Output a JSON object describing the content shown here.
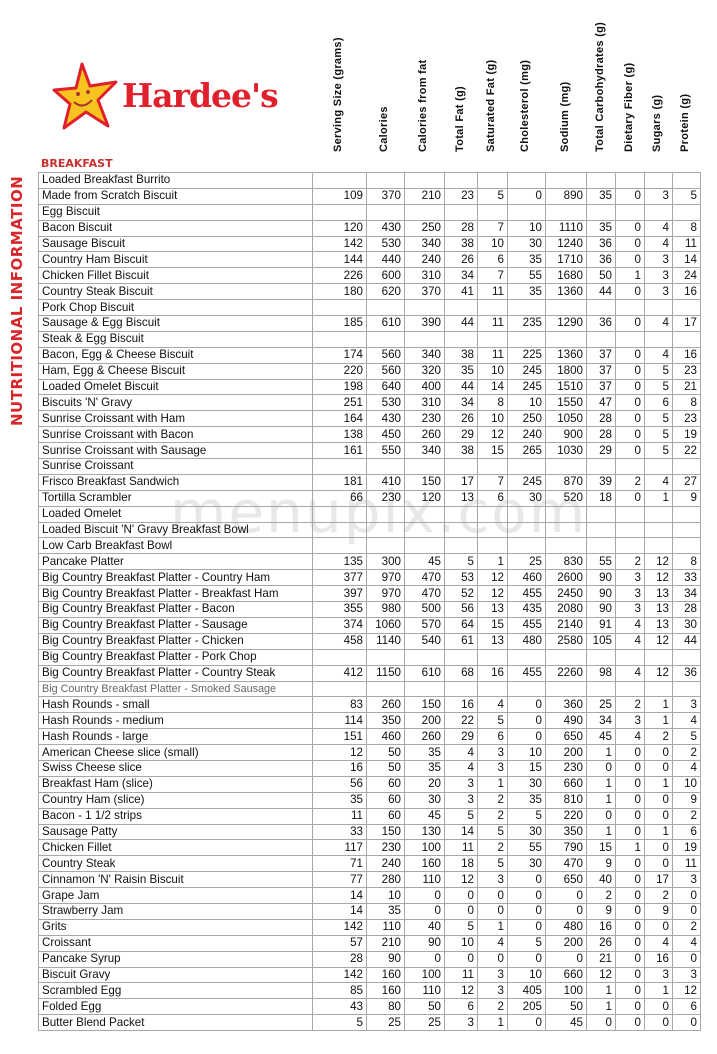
{
  "brand": {
    "name": "Hardee's",
    "logo_icon": "star-mascot-icon",
    "color": "#e0202c"
  },
  "side_title": "NUTRITIONAL INFORMATION",
  "section": "BREAKFAST",
  "watermark": "menupix.com",
  "columns": [
    "Serving Size (grams)",
    "Calories",
    "Calories from fat",
    "Total Fat (g)",
    "Saturated Fat (g)",
    "Cholesterol (mg)",
    "Sodium (mg)",
    "Total Carbohydrates (g)",
    "Dietary Fiber (g)",
    "Sugars (g)",
    "Protein (g)"
  ],
  "rows": [
    {
      "name": "Loaded Breakfast Burrito",
      "values": []
    },
    {
      "name": "Made from Scratch Biscuit",
      "values": [
        "109",
        "370",
        "210",
        "23",
        "5",
        "0",
        "890",
        "35",
        "0",
        "3",
        "5"
      ]
    },
    {
      "name": "Egg Biscuit",
      "values": []
    },
    {
      "name": "Bacon Biscuit",
      "values": [
        "120",
        "430",
        "250",
        "28",
        "7",
        "10",
        "1110",
        "35",
        "0",
        "4",
        "8"
      ]
    },
    {
      "name": "Sausage Biscuit",
      "values": [
        "142",
        "530",
        "340",
        "38",
        "10",
        "30",
        "1240",
        "36",
        "0",
        "4",
        "11"
      ]
    },
    {
      "name": "Country Ham Biscuit",
      "values": [
        "144",
        "440",
        "240",
        "26",
        "6",
        "35",
        "1710",
        "36",
        "0",
        "3",
        "14"
      ]
    },
    {
      "name": "Chicken Fillet Biscuit",
      "values": [
        "226",
        "600",
        "310",
        "34",
        "7",
        "55",
        "1680",
        "50",
        "1",
        "3",
        "24"
      ]
    },
    {
      "name": "Country Steak Biscuit",
      "values": [
        "180",
        "620",
        "370",
        "41",
        "11",
        "35",
        "1360",
        "44",
        "0",
        "3",
        "16"
      ]
    },
    {
      "name": "Pork Chop Biscuit",
      "values": []
    },
    {
      "name": "Sausage & Egg Biscuit",
      "values": [
        "185",
        "610",
        "390",
        "44",
        "11",
        "235",
        "1290",
        "36",
        "0",
        "4",
        "17"
      ]
    },
    {
      "name": "Steak & Egg Biscuit",
      "values": []
    },
    {
      "name": "Bacon, Egg & Cheese Biscuit",
      "values": [
        "174",
        "560",
        "340",
        "38",
        "11",
        "225",
        "1360",
        "37",
        "0",
        "4",
        "16"
      ]
    },
    {
      "name": "Ham, Egg & Cheese Biscuit",
      "values": [
        "220",
        "560",
        "320",
        "35",
        "10",
        "245",
        "1800",
        "37",
        "0",
        "5",
        "23"
      ]
    },
    {
      "name": "Loaded Omelet Biscuit",
      "values": [
        "198",
        "640",
        "400",
        "44",
        "14",
        "245",
        "1510",
        "37",
        "0",
        "5",
        "21"
      ]
    },
    {
      "name": "Biscuits 'N' Gravy",
      "values": [
        "251",
        "530",
        "310",
        "34",
        "8",
        "10",
        "1550",
        "47",
        "0",
        "6",
        "8"
      ]
    },
    {
      "name": "Sunrise Croissant with Ham",
      "values": [
        "164",
        "430",
        "230",
        "26",
        "10",
        "250",
        "1050",
        "28",
        "0",
        "5",
        "23"
      ]
    },
    {
      "name": "Sunrise Croissant with Bacon",
      "values": [
        "138",
        "450",
        "260",
        "29",
        "12",
        "240",
        "900",
        "28",
        "0",
        "5",
        "19"
      ]
    },
    {
      "name": "Sunrise Croissant with Sausage",
      "values": [
        "161",
        "550",
        "340",
        "38",
        "15",
        "265",
        "1030",
        "29",
        "0",
        "5",
        "22"
      ]
    },
    {
      "name": "Sunrise Croissant",
      "values": []
    },
    {
      "name": "Frisco Breakfast Sandwich",
      "values": [
        "181",
        "410",
        "150",
        "17",
        "7",
        "245",
        "870",
        "39",
        "2",
        "4",
        "27"
      ]
    },
    {
      "name": "Tortilla Scrambler",
      "values": [
        "66",
        "230",
        "120",
        "13",
        "6",
        "30",
        "520",
        "18",
        "0",
        "1",
        "9"
      ]
    },
    {
      "name": "Loaded Omelet",
      "values": []
    },
    {
      "name": "Loaded Biscuit 'N' Gravy Breakfast Bowl",
      "values": []
    },
    {
      "name": "Low Carb Breakfast Bowl",
      "values": []
    },
    {
      "name": "Pancake Platter",
      "values": [
        "135",
        "300",
        "45",
        "5",
        "1",
        "25",
        "830",
        "55",
        "2",
        "12",
        "8"
      ]
    },
    {
      "name": "Big Country Breakfast Platter - Country Ham",
      "values": [
        "377",
        "970",
        "470",
        "53",
        "12",
        "460",
        "2600",
        "90",
        "3",
        "12",
        "33"
      ]
    },
    {
      "name": "Big Country Breakfast Platter - Breakfast Ham",
      "values": [
        "397",
        "970",
        "470",
        "52",
        "12",
        "455",
        "2450",
        "90",
        "3",
        "13",
        "34"
      ]
    },
    {
      "name": "Big Country Breakfast Platter - Bacon",
      "values": [
        "355",
        "980",
        "500",
        "56",
        "13",
        "435",
        "2080",
        "90",
        "3",
        "13",
        "28"
      ]
    },
    {
      "name": "Big Country Breakfast Platter - Sausage",
      "values": [
        "374",
        "1060",
        "570",
        "64",
        "15",
        "455",
        "2140",
        "91",
        "4",
        "13",
        "30"
      ]
    },
    {
      "name": "Big Country Breakfast Platter - Chicken",
      "values": [
        "458",
        "1140",
        "540",
        "61",
        "13",
        "480",
        "2580",
        "105",
        "4",
        "12",
        "44"
      ]
    },
    {
      "name": "Big Country Breakfast Platter - Pork Chop",
      "values": []
    },
    {
      "name": "Big Country Breakfast Platter - Country Steak",
      "values": [
        "412",
        "1150",
        "610",
        "68",
        "16",
        "455",
        "2260",
        "98",
        "4",
        "12",
        "36"
      ]
    },
    {
      "name": "Big Country Breakfast Platter - Smoked Sausage",
      "values": [],
      "light": true
    },
    {
      "name": "Hash Rounds - small",
      "values": [
        "83",
        "260",
        "150",
        "16",
        "4",
        "0",
        "360",
        "25",
        "2",
        "1",
        "3"
      ]
    },
    {
      "name": "Hash Rounds - medium",
      "values": [
        "114",
        "350",
        "200",
        "22",
        "5",
        "0",
        "490",
        "34",
        "3",
        "1",
        "4"
      ]
    },
    {
      "name": "Hash Rounds - large",
      "values": [
        "151",
        "460",
        "260",
        "29",
        "6",
        "0",
        "650",
        "45",
        "4",
        "2",
        "5"
      ]
    },
    {
      "name": "American Cheese slice (small)",
      "values": [
        "12",
        "50",
        "35",
        "4",
        "3",
        "10",
        "200",
        "1",
        "0",
        "0",
        "2"
      ]
    },
    {
      "name": "Swiss Cheese slice",
      "values": [
        "16",
        "50",
        "35",
        "4",
        "3",
        "15",
        "230",
        "0",
        "0",
        "0",
        "4"
      ]
    },
    {
      "name": "Breakfast Ham (slice)",
      "values": [
        "56",
        "60",
        "20",
        "3",
        "1",
        "30",
        "660",
        "1",
        "0",
        "1",
        "10"
      ]
    },
    {
      "name": "Country Ham (slice)",
      "values": [
        "35",
        "60",
        "30",
        "3",
        "2",
        "35",
        "810",
        "1",
        "0",
        "0",
        "9"
      ]
    },
    {
      "name": "Bacon - 1 1/2 strips",
      "values": [
        "11",
        "60",
        "45",
        "5",
        "2",
        "5",
        "220",
        "0",
        "0",
        "0",
        "2"
      ]
    },
    {
      "name": "Sausage Patty",
      "values": [
        "33",
        "150",
        "130",
        "14",
        "5",
        "30",
        "350",
        "1",
        "0",
        "1",
        "6"
      ]
    },
    {
      "name": "Chicken Fillet",
      "values": [
        "117",
        "230",
        "100",
        "11",
        "2",
        "55",
        "790",
        "15",
        "1",
        "0",
        "19"
      ]
    },
    {
      "name": "Country Steak",
      "values": [
        "71",
        "240",
        "160",
        "18",
        "5",
        "30",
        "470",
        "9",
        "0",
        "0",
        "11"
      ]
    },
    {
      "name": "Cinnamon 'N' Raisin Biscuit",
      "values": [
        "77",
        "280",
        "110",
        "12",
        "3",
        "0",
        "650",
        "40",
        "0",
        "17",
        "3"
      ]
    },
    {
      "name": "Grape Jam",
      "values": [
        "14",
        "10",
        "0",
        "0",
        "0",
        "0",
        "0",
        "2",
        "0",
        "2",
        "0"
      ]
    },
    {
      "name": "Strawberry Jam",
      "values": [
        "14",
        "35",
        "0",
        "0",
        "0",
        "0",
        "0",
        "9",
        "0",
        "9",
        "0"
      ]
    },
    {
      "name": "Grits",
      "values": [
        "142",
        "110",
        "40",
        "5",
        "1",
        "0",
        "480",
        "16",
        "0",
        "0",
        "2"
      ]
    },
    {
      "name": "Croissant",
      "values": [
        "57",
        "210",
        "90",
        "10",
        "4",
        "5",
        "200",
        "26",
        "0",
        "4",
        "4"
      ]
    },
    {
      "name": "Pancake Syrup",
      "values": [
        "28",
        "90",
        "0",
        "0",
        "0",
        "0",
        "0",
        "21",
        "0",
        "16",
        "0"
      ]
    },
    {
      "name": "Biscuit Gravy",
      "values": [
        "142",
        "160",
        "100",
        "11",
        "3",
        "10",
        "660",
        "12",
        "0",
        "3",
        "3"
      ]
    },
    {
      "name": "Scrambled Egg",
      "values": [
        "85",
        "160",
        "110",
        "12",
        "3",
        "405",
        "100",
        "1",
        "0",
        "1",
        "12"
      ]
    },
    {
      "name": "Folded Egg",
      "values": [
        "43",
        "80",
        "50",
        "6",
        "2",
        "205",
        "50",
        "1",
        "0",
        "0",
        "6"
      ]
    },
    {
      "name": "Butter Blend Packet",
      "values": [
        "5",
        "25",
        "25",
        "3",
        "1",
        "0",
        "45",
        "0",
        "0",
        "0",
        "0"
      ]
    }
  ]
}
